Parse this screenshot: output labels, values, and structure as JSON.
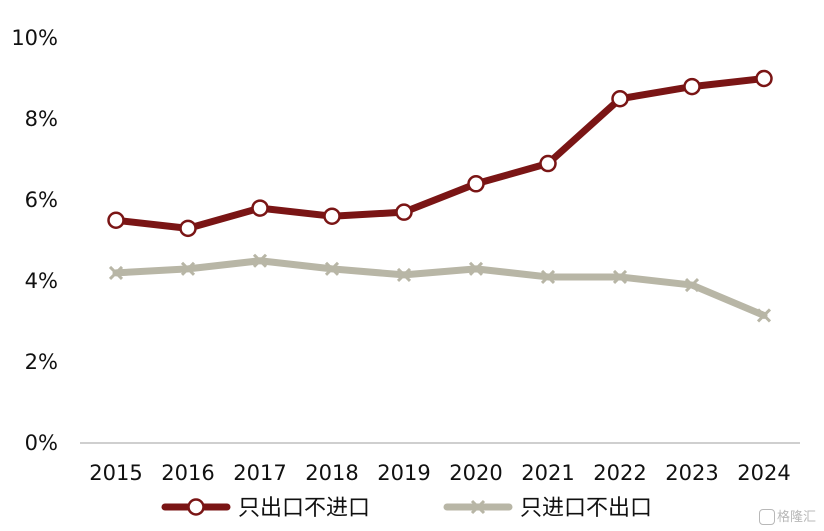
{
  "chart_data": {
    "type": "line",
    "title": "",
    "xlabel": "",
    "ylabel": "",
    "x": [
      "2015",
      "2016",
      "2017",
      "2018",
      "2019",
      "2020",
      "2021",
      "2022",
      "2023",
      "2024"
    ],
    "ylim": [
      0,
      10
    ],
    "y_ticks": [
      0,
      2,
      4,
      6,
      8,
      10
    ],
    "y_tick_labels": [
      "0%",
      "2%",
      "4%",
      "6%",
      "8%",
      "10%"
    ],
    "grid": false,
    "legend_position": "bottom",
    "series": [
      {
        "name": "只出口不进口",
        "values": [
          5.5,
          5.3,
          5.8,
          5.6,
          5.7,
          6.4,
          6.9,
          8.5,
          8.8,
          9.0
        ],
        "color": "#7a1515",
        "marker": "circle"
      },
      {
        "name": "只进口不出口",
        "values": [
          4.2,
          4.3,
          4.5,
          4.3,
          4.15,
          4.3,
          4.1,
          4.1,
          3.9,
          3.15
        ],
        "color": "#b8b6a6",
        "marker": "x"
      }
    ]
  },
  "watermark": {
    "text": "格隆汇"
  }
}
